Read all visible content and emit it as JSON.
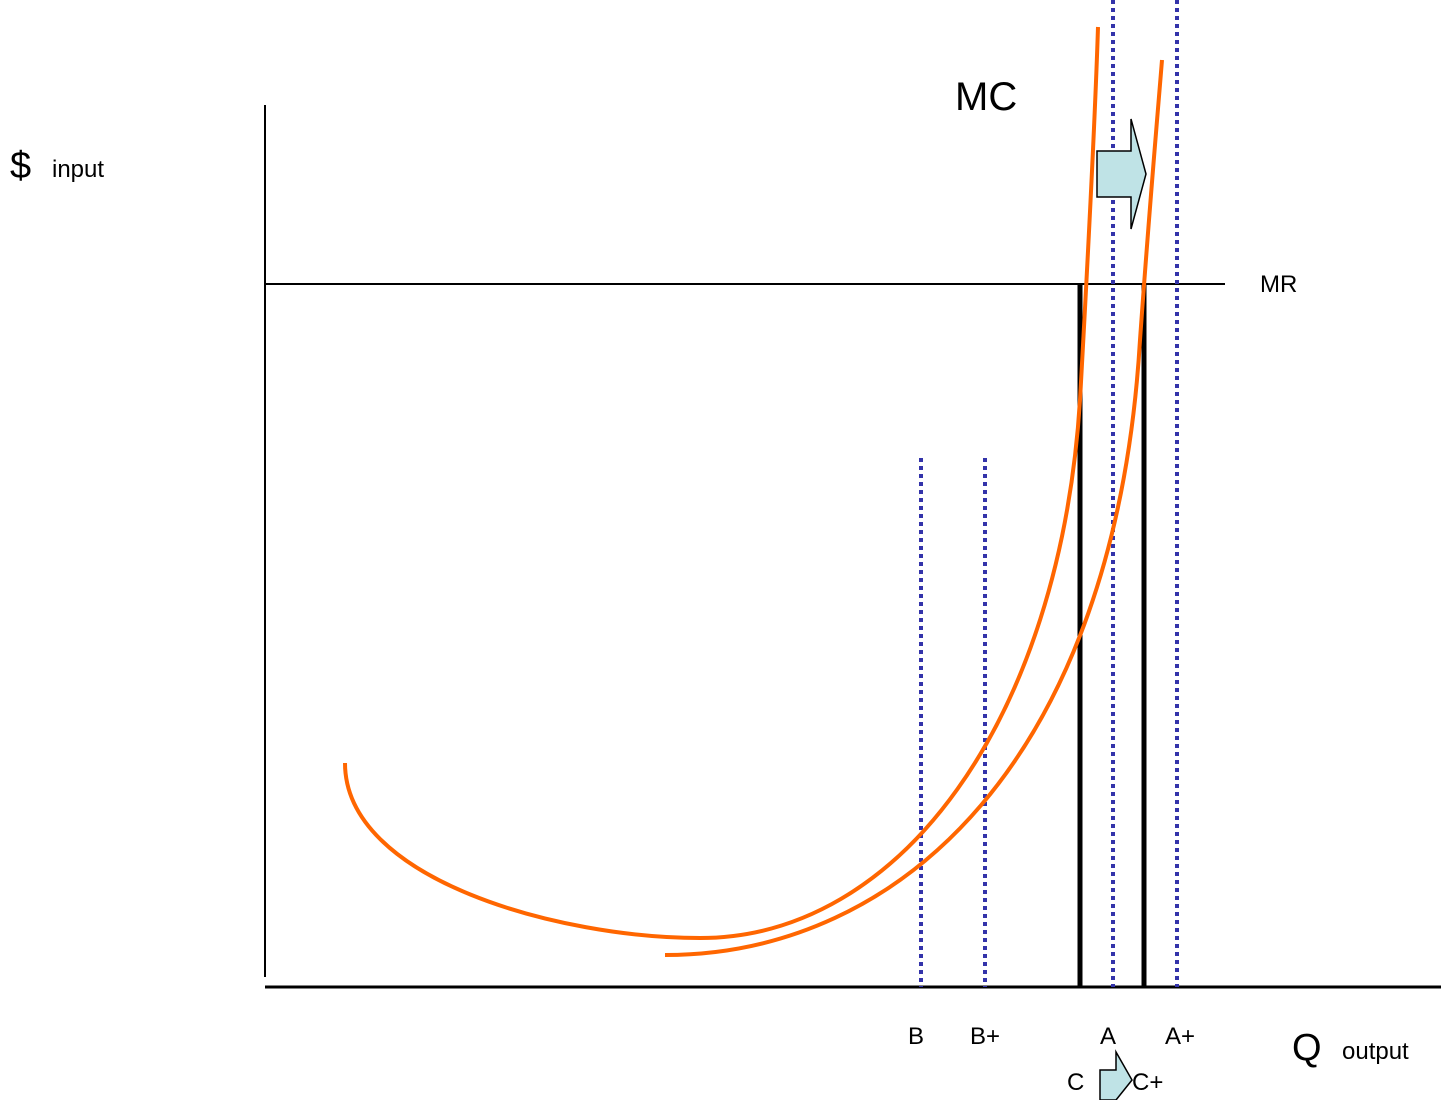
{
  "labels": {
    "y_axis_symbol": "$",
    "y_axis_word": "input",
    "x_axis_symbol": "Q",
    "x_axis_word": "output",
    "mc": "MC",
    "mr": "MR",
    "b": "B",
    "b_plus": "B+",
    "a": "A",
    "a_plus": "A+",
    "c": "C",
    "c_plus": "C+"
  },
  "colors": {
    "mc_curve": "#ff6600",
    "dotted_lines": "#3333aa",
    "arrow_fill": "#bfe3e6",
    "axis": "#000000"
  },
  "icons": {
    "shift_arrow": "right-block-arrow"
  }
}
